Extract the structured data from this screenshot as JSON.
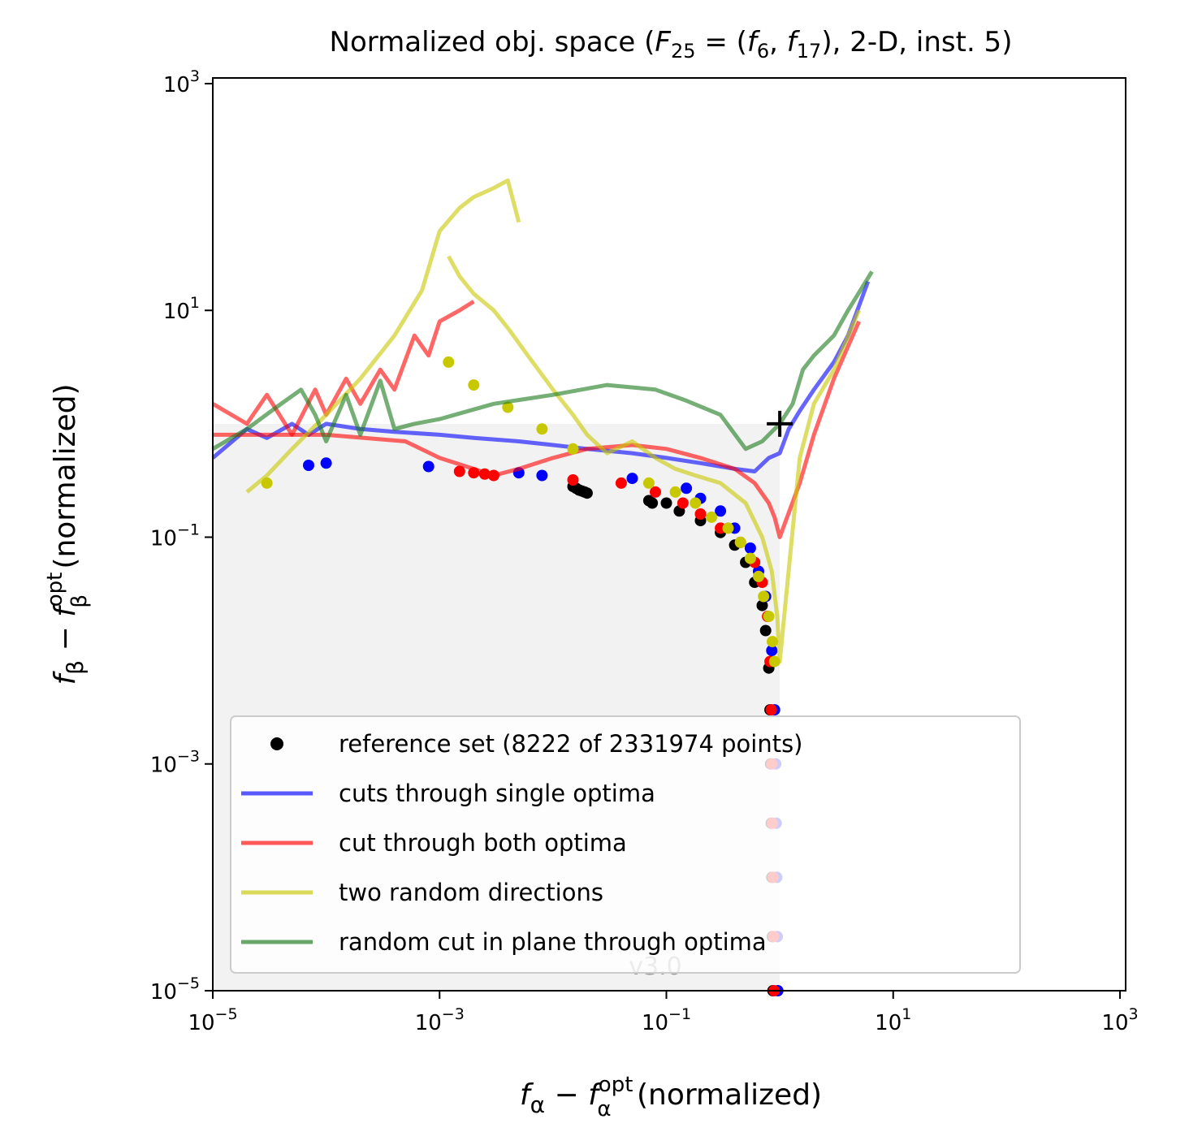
{
  "chart_data": {
    "type": "line",
    "title": "Normalized obj. space (F25 = (f6, f17), 2-D, inst. 5)",
    "title_parts": {
      "prefix": "Normalized obj. space (",
      "F": "F",
      "F_sub": "25",
      "eq": " = (",
      "f1": "f",
      "f1_sub": "6",
      "comma": ", ",
      "f2": "f",
      "f2_sub": "17",
      "suffix": "), 2-D, inst. 5)"
    },
    "xlabel": "fα − fα^opt (normalized)",
    "xlabel_parts": {
      "f": "f",
      "sub": "α",
      "minus": " − ",
      "f2": "f",
      "sup": "opt",
      "sub2": "α",
      "rest": " (normalized)"
    },
    "ylabel": "fβ − fβ^opt (normalized)",
    "ylabel_parts": {
      "f": "f",
      "sub": "β",
      "minus": " − ",
      "f2": "f",
      "sup": "opt",
      "sub2": "β",
      "rest": " (normalized)"
    },
    "xscale": "log",
    "yscale": "log",
    "xlim_exp": [
      -5,
      3.05
    ],
    "ylim_exp": [
      -5,
      3.05
    ],
    "xticks": [
      {
        "base": "10",
        "exp": "−5",
        "value": -5
      },
      {
        "base": "10",
        "exp": "−3",
        "value": -3
      },
      {
        "base": "10",
        "exp": "−1",
        "value": -1
      },
      {
        "base": "10",
        "exp": "1",
        "value": 1
      },
      {
        "base": "10",
        "exp": "3",
        "value": 3
      }
    ],
    "yticks": [
      {
        "base": "10",
        "exp": "−5",
        "value": -5
      },
      {
        "base": "10",
        "exp": "−3",
        "value": -3
      },
      {
        "base": "10",
        "exp": "−1",
        "value": -1
      },
      {
        "base": "10",
        "exp": "1",
        "value": 1
      },
      {
        "base": "10",
        "exp": "3",
        "value": 3
      }
    ],
    "nadir_marker": {
      "x": 1.0,
      "y": 1.0,
      "symbol": "+"
    },
    "dominated_region": {
      "x_max": 1.0,
      "y_max": 1.0,
      "color": "#f2f2f2"
    },
    "watermark": "v3.0",
    "legend": {
      "placement": "lower-left",
      "entries": [
        {
          "label": "reference set (8222 of 2331974 points)",
          "kind": "marker",
          "color": "#000000"
        },
        {
          "label": "cuts through single optima",
          "kind": "line",
          "color": "#0000ff"
        },
        {
          "label": "cut through both optima",
          "kind": "line",
          "color": "#ff0000"
        },
        {
          "label": "two random directions",
          "kind": "line",
          "color": "#c8c800"
        },
        {
          "label": "random cut in plane through optima",
          "kind": "line",
          "color": "#1a7a1a"
        }
      ]
    },
    "series": [
      {
        "name": "reference set (8222 of 2331974 points)",
        "kind": "points",
        "color": "#000000",
        "points": [
          [
            0.015,
            0.28
          ],
          [
            0.016,
            0.27
          ],
          [
            0.017,
            0.26
          ],
          [
            0.018,
            0.255
          ],
          [
            0.019,
            0.25
          ],
          [
            0.02,
            0.245
          ],
          [
            0.07,
            0.21
          ],
          [
            0.075,
            0.2
          ],
          [
            0.1,
            0.2
          ],
          [
            0.13,
            0.17
          ],
          [
            0.2,
            0.14
          ],
          [
            0.3,
            0.11
          ],
          [
            0.4,
            0.085
          ],
          [
            0.5,
            0.06
          ],
          [
            0.6,
            0.04
          ],
          [
            0.7,
            0.025
          ],
          [
            0.75,
            0.015
          ],
          [
            0.8,
            0.007
          ],
          [
            0.82,
            0.003
          ],
          [
            0.83,
            0.001
          ],
          [
            0.84,
            0.0003
          ],
          [
            0.85,
            0.0001
          ],
          [
            0.86,
            3e-05
          ],
          [
            0.87,
            1e-05
          ]
        ]
      },
      {
        "name": "cuts through single optima",
        "kind": "line",
        "color": "#0000ff",
        "points": [
          [
            1e-05,
            0.5
          ],
          [
            2e-05,
            0.9
          ],
          [
            3e-05,
            0.75
          ],
          [
            5e-05,
            1.0
          ],
          [
            7e-05,
            0.8
          ],
          [
            0.0001,
            1.0
          ],
          [
            0.0002,
            0.9
          ],
          [
            0.0004,
            0.85
          ],
          [
            0.001,
            0.8
          ],
          [
            0.002,
            0.75
          ],
          [
            0.005,
            0.7
          ],
          [
            0.01,
            0.65
          ],
          [
            0.02,
            0.6
          ],
          [
            0.05,
            0.55
          ],
          [
            0.1,
            0.5
          ],
          [
            0.2,
            0.45
          ],
          [
            0.4,
            0.4
          ],
          [
            0.6,
            0.38
          ],
          [
            0.8,
            0.5
          ],
          [
            1.0,
            0.55
          ],
          [
            1.2,
            0.9
          ],
          [
            1.5,
            1.3
          ],
          [
            2.0,
            2.0
          ],
          [
            3.0,
            3.5
          ],
          [
            4.0,
            6.0
          ],
          [
            6.0,
            18.0
          ]
        ]
      },
      {
        "name": "cuts through single optima (dots)",
        "kind": "points",
        "color": "#0000ff",
        "points": [
          [
            7e-05,
            0.43
          ],
          [
            0.0001,
            0.45
          ],
          [
            0.0008,
            0.42
          ],
          [
            0.005,
            0.37
          ],
          [
            0.008,
            0.35
          ],
          [
            0.05,
            0.33
          ],
          [
            0.15,
            0.27
          ],
          [
            0.2,
            0.22
          ],
          [
            0.3,
            0.17
          ],
          [
            0.4,
            0.12
          ],
          [
            0.55,
            0.08
          ],
          [
            0.65,
            0.05
          ],
          [
            0.75,
            0.03
          ],
          [
            0.85,
            0.01
          ],
          [
            0.9,
            0.003
          ],
          [
            0.92,
            0.001
          ],
          [
            0.93,
            0.0003
          ],
          [
            0.94,
            0.0001
          ],
          [
            0.95,
            3e-05
          ],
          [
            0.96,
            1e-05
          ]
        ]
      },
      {
        "name": "cut through both optima",
        "kind": "line",
        "color": "#ff0000",
        "points": [
          [
            1e-05,
            1.5
          ],
          [
            2e-05,
            1.0
          ],
          [
            3e-05,
            1.8
          ],
          [
            5e-05,
            0.8
          ],
          [
            8e-05,
            2.0
          ],
          [
            0.0001,
            1.2
          ],
          [
            0.00015,
            2.5
          ],
          [
            0.0002,
            1.5
          ],
          [
            0.0003,
            3.0
          ],
          [
            0.0004,
            2.0
          ],
          [
            0.0006,
            6.0
          ],
          [
            0.0008,
            4.0
          ],
          [
            0.001,
            8.0
          ],
          [
            0.0015,
            10.0
          ],
          [
            0.002,
            12.0
          ]
        ]
      },
      {
        "name": "cut through both optima (lower)",
        "kind": "line",
        "color": "#ff0000",
        "points": [
          [
            1e-05,
            0.8
          ],
          [
            0.0001,
            0.8
          ],
          [
            0.0005,
            0.7
          ],
          [
            0.001,
            0.5
          ],
          [
            0.002,
            0.4
          ],
          [
            0.003,
            0.35
          ],
          [
            0.005,
            0.4
          ],
          [
            0.01,
            0.5
          ],
          [
            0.02,
            0.6
          ],
          [
            0.05,
            0.65
          ],
          [
            0.1,
            0.6
          ],
          [
            0.2,
            0.5
          ],
          [
            0.4,
            0.4
          ],
          [
            0.6,
            0.3
          ],
          [
            0.8,
            0.2
          ],
          [
            0.9,
            0.15
          ],
          [
            1.0,
            0.1
          ],
          [
            1.5,
            0.3
          ],
          [
            2.0,
            0.8
          ],
          [
            3.0,
            2.5
          ],
          [
            5.0,
            8.0
          ]
        ]
      },
      {
        "name": "cut through both optima (dots)",
        "kind": "points",
        "color": "#ff0000",
        "points": [
          [
            0.0015,
            0.38
          ],
          [
            0.002,
            0.37
          ],
          [
            0.0025,
            0.36
          ],
          [
            0.003,
            0.35
          ],
          [
            0.015,
            0.32
          ],
          [
            0.04,
            0.3
          ],
          [
            0.08,
            0.25
          ],
          [
            0.14,
            0.2
          ],
          [
            0.2,
            0.16
          ],
          [
            0.3,
            0.12
          ],
          [
            0.45,
            0.09
          ],
          [
            0.6,
            0.06
          ],
          [
            0.7,
            0.04
          ],
          [
            0.78,
            0.02
          ],
          [
            0.82,
            0.008
          ],
          [
            0.84,
            0.003
          ],
          [
            0.85,
            0.001
          ],
          [
            0.86,
            0.0003
          ],
          [
            0.87,
            0.0001
          ],
          [
            0.88,
            3e-05
          ],
          [
            0.89,
            1e-05
          ]
        ]
      },
      {
        "name": "two random directions",
        "kind": "line",
        "color": "#c8c800",
        "points": [
          [
            2e-05,
            0.25
          ],
          [
            3e-05,
            0.35
          ],
          [
            5e-05,
            0.6
          ],
          [
            0.0001,
            1.2
          ],
          [
            0.0002,
            2.5
          ],
          [
            0.0004,
            6.0
          ],
          [
            0.0007,
            15.0
          ],
          [
            0.001,
            50.0
          ],
          [
            0.0015,
            80.0
          ],
          [
            0.002,
            100.0
          ],
          [
            0.003,
            120.0
          ],
          [
            0.004,
            140.0
          ],
          [
            0.005,
            60.0
          ]
        ]
      },
      {
        "name": "two random directions (descent)",
        "kind": "line",
        "color": "#c8c800",
        "points": [
          [
            0.0012,
            30.0
          ],
          [
            0.0015,
            20.0
          ],
          [
            0.002,
            14.0
          ],
          [
            0.003,
            10.0
          ],
          [
            0.004,
            7.0
          ],
          [
            0.006,
            4.0
          ],
          [
            0.01,
            2.0
          ],
          [
            0.015,
            1.2
          ],
          [
            0.02,
            0.8
          ],
          [
            0.03,
            0.55
          ],
          [
            0.05,
            0.7
          ],
          [
            0.08,
            0.5
          ],
          [
            0.12,
            0.4
          ],
          [
            0.18,
            0.35
          ],
          [
            0.3,
            0.3
          ],
          [
            0.5,
            0.2
          ],
          [
            0.7,
            0.1
          ],
          [
            0.85,
            0.05
          ],
          [
            0.95,
            0.02
          ],
          [
            1.0,
            0.008
          ],
          [
            1.5,
            0.5
          ],
          [
            2.0,
            1.5
          ],
          [
            3.0,
            3.0
          ],
          [
            5.0,
            10.0
          ]
        ]
      },
      {
        "name": "two random directions (dots)",
        "kind": "points",
        "color": "#c8c800",
        "points": [
          [
            3e-05,
            0.3
          ],
          [
            0.0012,
            3.5
          ],
          [
            0.002,
            2.2
          ],
          [
            0.004,
            1.4
          ],
          [
            0.008,
            0.9
          ],
          [
            0.015,
            0.6
          ],
          [
            0.07,
            0.3
          ],
          [
            0.12,
            0.25
          ],
          [
            0.18,
            0.2
          ],
          [
            0.25,
            0.15
          ],
          [
            0.35,
            0.12
          ],
          [
            0.45,
            0.09
          ],
          [
            0.55,
            0.065
          ],
          [
            0.65,
            0.045
          ],
          [
            0.72,
            0.03
          ],
          [
            0.8,
            0.02
          ],
          [
            0.86,
            0.012
          ],
          [
            0.9,
            0.008
          ]
        ]
      },
      {
        "name": "random cut in plane through optima",
        "kind": "line",
        "color": "#1a7a1a",
        "points": [
          [
            1e-05,
            0.6
          ],
          [
            2e-05,
            0.9
          ],
          [
            4e-05,
            1.5
          ],
          [
            6e-05,
            2.0
          ],
          [
            8e-05,
            1.2
          ],
          [
            0.0001,
            0.7
          ],
          [
            0.00015,
            1.8
          ],
          [
            0.0002,
            0.8
          ],
          [
            0.0003,
            2.4
          ],
          [
            0.0004,
            0.9
          ],
          [
            0.0006,
            1.0
          ],
          [
            0.001,
            1.1
          ],
          [
            0.003,
            1.5
          ],
          [
            0.01,
            1.8
          ],
          [
            0.03,
            2.2
          ],
          [
            0.08,
            2.0
          ],
          [
            0.15,
            1.6
          ],
          [
            0.3,
            1.2
          ],
          [
            0.5,
            0.6
          ],
          [
            0.7,
            0.7
          ],
          [
            1.0,
            1.0
          ],
          [
            1.3,
            1.5
          ],
          [
            1.6,
            3.0
          ],
          [
            2.0,
            4.0
          ],
          [
            3.0,
            6.0
          ],
          [
            4.0,
            10.0
          ],
          [
            6.5,
            22.0
          ]
        ]
      }
    ]
  }
}
